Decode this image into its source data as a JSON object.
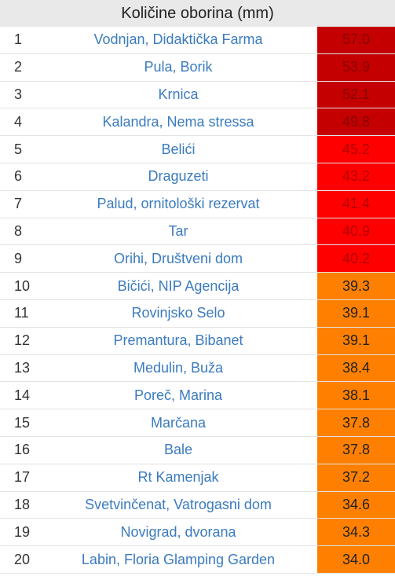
{
  "title": "Količine oborina (mm)",
  "colors": {
    "darkred": "#c40000",
    "red": "#ff0000",
    "orange": "#ff8000",
    "link": "#3b7bbf",
    "header_bg": "#e9e9e9"
  },
  "rows": [
    {
      "rank": "1",
      "station": "Vodnjan, Didaktička Farma",
      "value": "57.0",
      "level": "darkred"
    },
    {
      "rank": "2",
      "station": "Pula, Borik",
      "value": "53.9",
      "level": "darkred"
    },
    {
      "rank": "3",
      "station": "Krnica",
      "value": "52.1",
      "level": "darkred"
    },
    {
      "rank": "4",
      "station": "Kalandra, Nema stressa",
      "value": "49.8",
      "level": "darkred"
    },
    {
      "rank": "5",
      "station": "Belići",
      "value": "45.2",
      "level": "red"
    },
    {
      "rank": "6",
      "station": "Draguzeti",
      "value": "43.2",
      "level": "red"
    },
    {
      "rank": "7",
      "station": "Palud, ornitološki rezervat",
      "value": "41.4",
      "level": "red"
    },
    {
      "rank": "8",
      "station": "Tar",
      "value": "40.9",
      "level": "red"
    },
    {
      "rank": "9",
      "station": "Orihi, Društveni dom",
      "value": "40.2",
      "level": "red"
    },
    {
      "rank": "10",
      "station": "Bičići, NIP Agencija",
      "value": "39.3",
      "level": "orange"
    },
    {
      "rank": "11",
      "station": "Rovinjsko Selo",
      "value": "39.1",
      "level": "orange"
    },
    {
      "rank": "12",
      "station": "Premantura, Bibanet",
      "value": "39.1",
      "level": "orange"
    },
    {
      "rank": "13",
      "station": "Medulin, Buža",
      "value": "38.4",
      "level": "orange"
    },
    {
      "rank": "14",
      "station": "Poreč, Marina",
      "value": "38.1",
      "level": "orange"
    },
    {
      "rank": "15",
      "station": "Marčana",
      "value": "37.8",
      "level": "orange"
    },
    {
      "rank": "16",
      "station": "Bale",
      "value": "37.8",
      "level": "orange"
    },
    {
      "rank": "17",
      "station": "Rt Kamenjak",
      "value": "37.2",
      "level": "orange"
    },
    {
      "rank": "18",
      "station": "Svetvinčenat, Vatrogasni dom",
      "value": "34.6",
      "level": "orange"
    },
    {
      "rank": "19",
      "station": "Novigrad, dvorana",
      "value": "34.3",
      "level": "orange"
    },
    {
      "rank": "20",
      "station": "Labin, Floria Glamping Garden",
      "value": "34.0",
      "level": "orange"
    }
  ]
}
